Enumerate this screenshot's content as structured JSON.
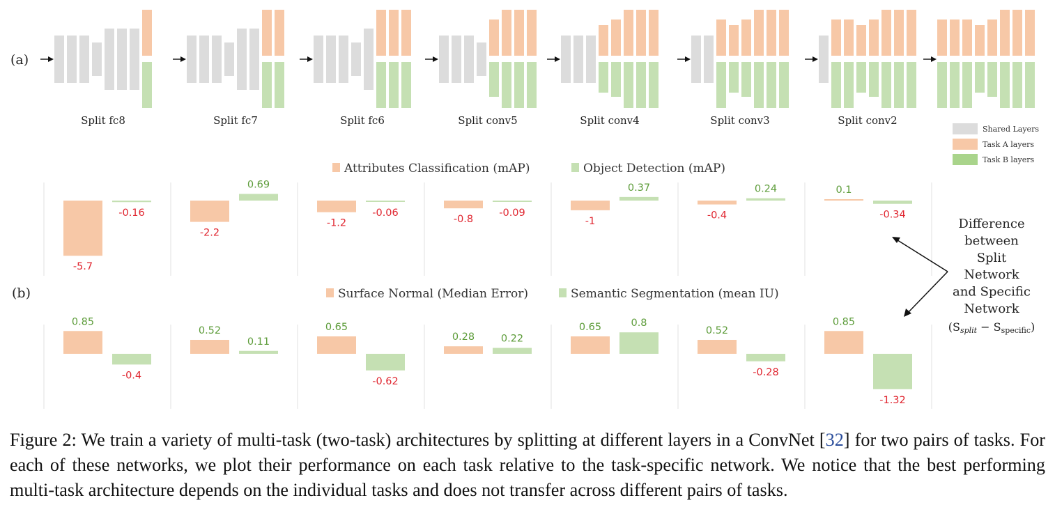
{
  "figure": {
    "panel_a_label": "(a)",
    "panel_b_label": "(b)",
    "legend": [
      {
        "label": "Shared Layers",
        "color": "#dcdcdc"
      },
      {
        "label": "Task A layers",
        "color": "#f7c8a7"
      },
      {
        "label": "Task B layers",
        "color": "#a9d48b"
      }
    ],
    "colors": {
      "shared": "#dcdcdc",
      "task_a": "#f7c8a7",
      "task_b": "#c5e0b3",
      "negative_label": "#e0252f",
      "positive_label": "#5d9c3a"
    },
    "splits": [
      {
        "name": "Split fc8",
        "split_index": 7
      },
      {
        "name": "Split fc7",
        "split_index": 6
      },
      {
        "name": "Split fc6",
        "split_index": 5
      },
      {
        "name": "Split conv5",
        "split_index": 4
      },
      {
        "name": "Split conv4",
        "split_index": 3
      },
      {
        "name": "Split conv3",
        "split_index": 2
      },
      {
        "name": "Split conv2",
        "split_index": 1
      },
      {
        "name": "",
        "split_index": 0
      }
    ],
    "annotation": {
      "lines": [
        "Difference",
        "between",
        "Split",
        "Network",
        "and Specific",
        "Network"
      ],
      "formula_open": "(S",
      "formula_sub1": "split",
      "formula_mid": " − S",
      "formula_sub2": "specific",
      "formula_close": ")"
    }
  },
  "chart_data": [
    {
      "type": "bar",
      "categories": [
        "Split fc8",
        "Split fc7",
        "Split fc6",
        "Split conv5",
        "Split conv4",
        "Split conv3",
        "Split conv2"
      ],
      "series": [
        {
          "name": "Attributes Classification (mAP)",
          "values": [
            -5.7,
            -2.2,
            -1.2,
            -0.8,
            -1,
            -0.4,
            0.1
          ]
        },
        {
          "name": "Object Detection (mAP)",
          "values": [
            -0.16,
            0.69,
            -0.06,
            -0.09,
            0.37,
            0.24,
            -0.34
          ]
        }
      ]
    },
    {
      "type": "bar",
      "categories": [
        "Split fc8",
        "Split fc7",
        "Split fc6",
        "Split conv5",
        "Split conv4",
        "Split conv3",
        "Split conv2"
      ],
      "series": [
        {
          "name": "Surface Normal (Median Error)",
          "values": [
            0.85,
            0.52,
            0.65,
            0.28,
            0.65,
            0.52,
            0.85
          ]
        },
        {
          "name": "Semantic Segmentation (mean IU)",
          "values": [
            -0.4,
            0.11,
            -0.62,
            0.22,
            0.8,
            -0.28,
            -1.32
          ]
        }
      ]
    }
  ],
  "caption": {
    "text_before": "Figure 2: We train a variety of multi-task (two-task) architectures by splitting at different layers in a ConvNet [",
    "ref": "32",
    "text_after": "] for two pairs of tasks. For each of these networks, we plot their performance on each task relative to the task-specific network. We notice that the best performing multi-task architecture depends on the individual tasks and does not transfer across different pairs of tasks."
  }
}
